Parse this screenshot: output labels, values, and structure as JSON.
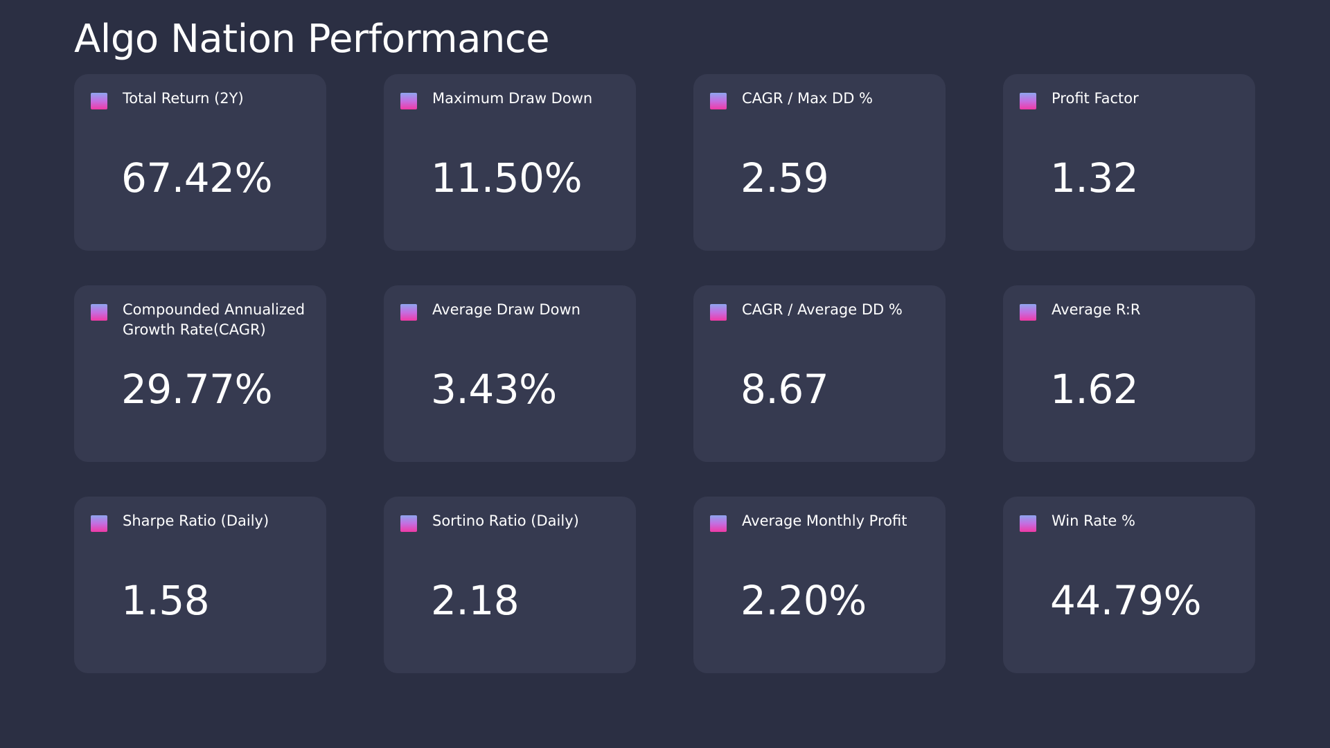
{
  "title": "Algo Nation Performance",
  "accent_gradient": [
    "#8fa5ef",
    "#c46ee0",
    "#f03aa6"
  ],
  "metrics": [
    {
      "label": "Total Return (2Y)",
      "value": "67.42%"
    },
    {
      "label": "Maximum Draw Down",
      "value": "11.50%"
    },
    {
      "label": "CAGR / Max DD %",
      "value": "2.59"
    },
    {
      "label": "Profit Factor",
      "value": "1.32"
    },
    {
      "label": "Compounded Annualized Growth Rate(CAGR)",
      "value": "29.77%"
    },
    {
      "label": "Average Draw Down",
      "value": "3.43%"
    },
    {
      "label": "CAGR / Average DD %",
      "value": "8.67"
    },
    {
      "label": "Average R:R",
      "value": "1.62"
    },
    {
      "label": "Sharpe Ratio (Daily)",
      "value": "1.58"
    },
    {
      "label": "Sortino Ratio (Daily)",
      "value": "2.18"
    },
    {
      "label": "Average Monthly Profit",
      "value": "2.20%"
    },
    {
      "label": "Win Rate %",
      "value": "44.79%"
    }
  ]
}
